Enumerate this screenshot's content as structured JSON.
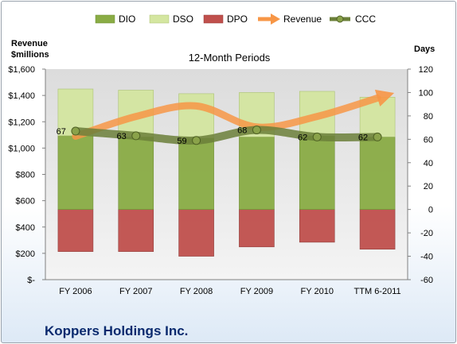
{
  "company": "Koppers Holdings Inc.",
  "chart_data": {
    "type": "bar",
    "title": "12-Month Periods",
    "categories": [
      "FY 2006",
      "FY 2007",
      "FY 2008",
      "FY 2009",
      "FY 2010",
      "TTM 6-2011"
    ],
    "left_axis": {
      "label_line1": "Revenue",
      "label_line2": "$millions",
      "range": [
        0,
        1600
      ],
      "ticks": [
        "$-",
        "$200",
        "$400",
        "$600",
        "$800",
        "$1,000",
        "$1,200",
        "$1,400",
        "$1,600"
      ]
    },
    "right_axis": {
      "label": "Days",
      "range": [
        -60,
        120
      ],
      "ticks": [
        "-60",
        "-40",
        "-20",
        "0",
        "20",
        "40",
        "60",
        "80",
        "100",
        "120"
      ]
    },
    "legend_position": "top",
    "grid": false,
    "series": [
      {
        "name": "DIO",
        "kind": "stacked-bar",
        "axis": "days",
        "color": "#8aac45",
        "values": [
          63,
          62,
          61,
          62,
          63,
          62
        ]
      },
      {
        "name": "DSO",
        "kind": "stacked-bar",
        "axis": "days",
        "color": "#d4e6a0",
        "values": [
          40,
          40,
          38,
          38,
          38,
          34
        ]
      },
      {
        "name": "DPO",
        "kind": "negative-bar",
        "axis": "days",
        "color": "#c0504d",
        "values": [
          -36,
          -36,
          -40,
          -32,
          -28,
          -34
        ]
      },
      {
        "name": "Revenue",
        "kind": "line",
        "axis": "revenue",
        "color": "#f79646",
        "values": [
          1090,
          1240,
          1320,
          1160,
          1240,
          1380
        ]
      },
      {
        "name": "CCC",
        "kind": "line",
        "axis": "days",
        "color": "#6b7f3a",
        "values": [
          67,
          63,
          59,
          68,
          62,
          62
        ],
        "labels": [
          "67",
          "63",
          "59",
          "68",
          "62",
          "62"
        ]
      }
    ]
  }
}
